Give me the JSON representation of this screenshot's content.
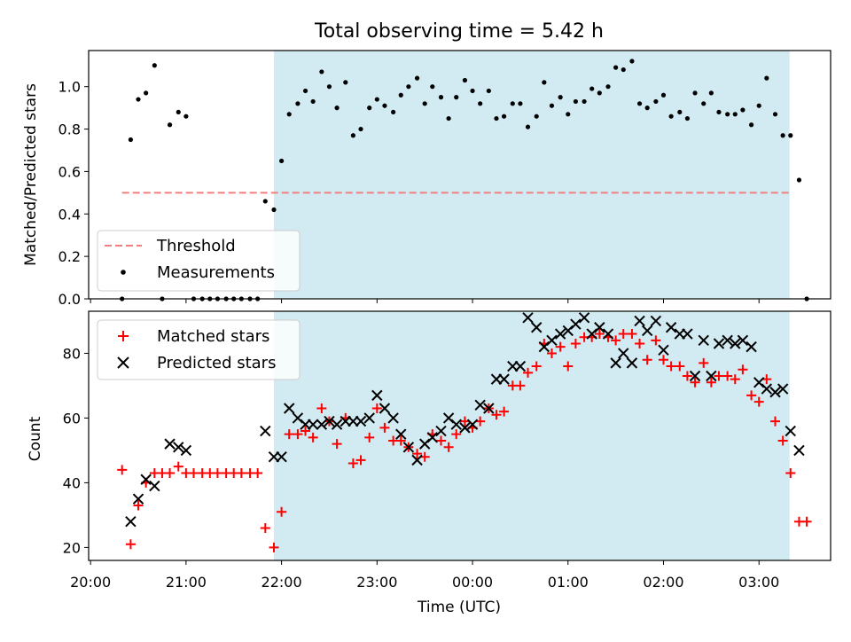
{
  "figure": {
    "title": "Total observing time = 5.42 h"
  },
  "chart_data": [
    {
      "type": "scatter",
      "panel": "top",
      "ylabel": "Matched/Predicted stars",
      "xlabel": "",
      "ylim": [
        0,
        1.17
      ],
      "yticks": [
        0.0,
        0.2,
        0.4,
        0.6,
        0.8,
        1.0
      ],
      "ytick_labels": [
        "0.0",
        "0.2",
        "0.4",
        "0.6",
        "0.8",
        "1.0"
      ],
      "xlim_hours": [
        19.98,
        27.75
      ],
      "highlight_span_hours": [
        21.92,
        27.32
      ],
      "highlight_color": "#add8e6",
      "threshold": {
        "name": "Threshold",
        "value": 0.5,
        "x_start_hours": 20.33,
        "x_end_hours": 27.32,
        "color": "#f08080"
      },
      "legend": {
        "placement": "lower-left",
        "entries": [
          "Threshold",
          "Measurements"
        ]
      },
      "series": [
        {
          "name": "Measurements",
          "marker": "dot",
          "color": "#000000",
          "points": [
            [
              20.33,
              0.0
            ],
            [
              20.42,
              0.75
            ],
            [
              20.5,
              0.94
            ],
            [
              20.58,
              0.97
            ],
            [
              20.67,
              1.1
            ],
            [
              20.75,
              0.0
            ],
            [
              20.83,
              0.82
            ],
            [
              20.92,
              0.88
            ],
            [
              21.0,
              0.86
            ],
            [
              21.08,
              0.0
            ],
            [
              21.17,
              0.0
            ],
            [
              21.25,
              0.0
            ],
            [
              21.33,
              0.0
            ],
            [
              21.42,
              0.0
            ],
            [
              21.5,
              0.0
            ],
            [
              21.58,
              0.0
            ],
            [
              21.67,
              0.0
            ],
            [
              21.75,
              0.0
            ],
            [
              21.83,
              0.46
            ],
            [
              21.92,
              0.42
            ],
            [
              22.0,
              0.65
            ],
            [
              22.08,
              0.87
            ],
            [
              22.17,
              0.92
            ],
            [
              22.25,
              0.98
            ],
            [
              22.33,
              0.93
            ],
            [
              22.42,
              1.07
            ],
            [
              22.5,
              1.0
            ],
            [
              22.58,
              0.9
            ],
            [
              22.67,
              1.02
            ],
            [
              22.75,
              0.77
            ],
            [
              22.83,
              0.8
            ],
            [
              22.92,
              0.9
            ],
            [
              23.0,
              0.94
            ],
            [
              23.08,
              0.91
            ],
            [
              23.17,
              0.88
            ],
            [
              23.25,
              0.96
            ],
            [
              23.33,
              1.0
            ],
            [
              23.42,
              1.04
            ],
            [
              23.5,
              0.92
            ],
            [
              23.58,
              1.0
            ],
            [
              23.67,
              0.95
            ],
            [
              23.75,
              0.85
            ],
            [
              23.83,
              0.95
            ],
            [
              23.92,
              1.03
            ],
            [
              24.0,
              0.98
            ],
            [
              24.08,
              0.92
            ],
            [
              24.17,
              0.98
            ],
            [
              24.25,
              0.85
            ],
            [
              24.33,
              0.86
            ],
            [
              24.42,
              0.92
            ],
            [
              24.5,
              0.92
            ],
            [
              24.58,
              0.81
            ],
            [
              24.67,
              0.86
            ],
            [
              24.75,
              1.02
            ],
            [
              24.83,
              0.91
            ],
            [
              24.92,
              0.95
            ],
            [
              25.0,
              0.87
            ],
            [
              25.08,
              0.93
            ],
            [
              25.17,
              0.93
            ],
            [
              25.25,
              0.99
            ],
            [
              25.33,
              0.97
            ],
            [
              25.42,
              1.0
            ],
            [
              25.5,
              1.09
            ],
            [
              25.58,
              1.08
            ],
            [
              25.67,
              1.12
            ],
            [
              25.75,
              0.92
            ],
            [
              25.83,
              0.9
            ],
            [
              25.92,
              0.93
            ],
            [
              26.0,
              0.96
            ],
            [
              26.08,
              0.86
            ],
            [
              26.17,
              0.88
            ],
            [
              26.25,
              0.85
            ],
            [
              26.33,
              0.97
            ],
            [
              26.42,
              0.92
            ],
            [
              26.5,
              0.97
            ],
            [
              26.58,
              0.88
            ],
            [
              26.67,
              0.87
            ],
            [
              26.75,
              0.87
            ],
            [
              26.83,
              0.89
            ],
            [
              26.92,
              0.82
            ],
            [
              27.0,
              0.91
            ],
            [
              27.08,
              1.04
            ],
            [
              27.17,
              0.87
            ],
            [
              27.25,
              0.77
            ],
            [
              27.33,
              0.77
            ],
            [
              27.42,
              0.56
            ],
            [
              27.5,
              0.0
            ]
          ]
        }
      ]
    },
    {
      "type": "scatter",
      "panel": "bottom",
      "ylabel": "Count",
      "xlabel": "Time (UTC)",
      "ylim": [
        16,
        93
      ],
      "yticks": [
        20,
        40,
        60,
        80
      ],
      "ytick_labels": [
        "20",
        "40",
        "60",
        "80"
      ],
      "xlim_hours": [
        19.98,
        27.75
      ],
      "xticks_hours": [
        20,
        21,
        22,
        23,
        24,
        25,
        26,
        27
      ],
      "xtick_labels": [
        "20:00",
        "21:00",
        "22:00",
        "23:00",
        "00:00",
        "01:00",
        "02:00",
        "03:00"
      ],
      "highlight_span_hours": [
        21.92,
        27.32
      ],
      "highlight_color": "#add8e6",
      "legend": {
        "placement": "upper-left",
        "entries": [
          "Matched stars",
          "Predicted stars"
        ]
      },
      "series": [
        {
          "name": "Matched stars",
          "marker": "plus",
          "color": "#ff0000",
          "points": [
            [
              20.33,
              44
            ],
            [
              20.42,
              21
            ],
            [
              20.5,
              33
            ],
            [
              20.58,
              40
            ],
            [
              20.67,
              43
            ],
            [
              20.75,
              43
            ],
            [
              20.83,
              43
            ],
            [
              20.92,
              45
            ],
            [
              21.0,
              43
            ],
            [
              21.08,
              43
            ],
            [
              21.17,
              43
            ],
            [
              21.25,
              43
            ],
            [
              21.33,
              43
            ],
            [
              21.42,
              43
            ],
            [
              21.5,
              43
            ],
            [
              21.58,
              43
            ],
            [
              21.67,
              43
            ],
            [
              21.75,
              43
            ],
            [
              21.83,
              26
            ],
            [
              21.92,
              20
            ],
            [
              22.0,
              31
            ],
            [
              22.08,
              55
            ],
            [
              22.17,
              55
            ],
            [
              22.25,
              56
            ],
            [
              22.33,
              54
            ],
            [
              22.42,
              63
            ],
            [
              22.5,
              59
            ],
            [
              22.58,
              52
            ],
            [
              22.67,
              60
            ],
            [
              22.75,
              46
            ],
            [
              22.83,
              47
            ],
            [
              22.92,
              54
            ],
            [
              23.0,
              63
            ],
            [
              23.08,
              57
            ],
            [
              23.17,
              53
            ],
            [
              23.25,
              53
            ],
            [
              23.33,
              51
            ],
            [
              23.42,
              49
            ],
            [
              23.5,
              48
            ],
            [
              23.58,
              55
            ],
            [
              23.67,
              53
            ],
            [
              23.75,
              51
            ],
            [
              23.83,
              55
            ],
            [
              23.92,
              59
            ],
            [
              24.0,
              57
            ],
            [
              24.08,
              59
            ],
            [
              24.17,
              63
            ],
            [
              24.25,
              61
            ],
            [
              24.33,
              62
            ],
            [
              24.42,
              70
            ],
            [
              24.5,
              70
            ],
            [
              24.58,
              74
            ],
            [
              24.67,
              76
            ],
            [
              24.75,
              83
            ],
            [
              24.83,
              80
            ],
            [
              24.92,
              82
            ],
            [
              25.0,
              76
            ],
            [
              25.08,
              83
            ],
            [
              25.17,
              85
            ],
            [
              25.25,
              85
            ],
            [
              25.33,
              86
            ],
            [
              25.42,
              85
            ],
            [
              25.5,
              84
            ],
            [
              25.58,
              86
            ],
            [
              25.67,
              86
            ],
            [
              25.75,
              83
            ],
            [
              25.83,
              78
            ],
            [
              25.92,
              84
            ],
            [
              26.0,
              78
            ],
            [
              26.08,
              76
            ],
            [
              26.17,
              76
            ],
            [
              26.25,
              73
            ],
            [
              26.33,
              71
            ],
            [
              26.42,
              77
            ],
            [
              26.5,
              71
            ],
            [
              26.58,
              73
            ],
            [
              26.67,
              73
            ],
            [
              26.75,
              72
            ],
            [
              26.83,
              75
            ],
            [
              26.92,
              67
            ],
            [
              27.0,
              65
            ],
            [
              27.08,
              72
            ],
            [
              27.17,
              59
            ],
            [
              27.25,
              53
            ],
            [
              27.33,
              43
            ],
            [
              27.42,
              28
            ],
            [
              27.5,
              28
            ]
          ]
        },
        {
          "name": "Predicted stars",
          "marker": "x",
          "color": "#000000",
          "points": [
            [
              20.42,
              28
            ],
            [
              20.5,
              35
            ],
            [
              20.58,
              41
            ],
            [
              20.67,
              39
            ],
            [
              20.83,
              52
            ],
            [
              20.92,
              51
            ],
            [
              21.0,
              50
            ],
            [
              21.83,
              56
            ],
            [
              21.92,
              48
            ],
            [
              22.0,
              48
            ],
            [
              22.08,
              63
            ],
            [
              22.17,
              60
            ],
            [
              22.25,
              58
            ],
            [
              22.33,
              58
            ],
            [
              22.42,
              58
            ],
            [
              22.5,
              59
            ],
            [
              22.58,
              58
            ],
            [
              22.67,
              59
            ],
            [
              22.75,
              59
            ],
            [
              22.83,
              59
            ],
            [
              22.92,
              60
            ],
            [
              23.0,
              67
            ],
            [
              23.08,
              63
            ],
            [
              23.17,
              60
            ],
            [
              23.25,
              55
            ],
            [
              23.33,
              51
            ],
            [
              23.42,
              47
            ],
            [
              23.5,
              52
            ],
            [
              23.58,
              54
            ],
            [
              23.67,
              56
            ],
            [
              23.75,
              60
            ],
            [
              23.83,
              58
            ],
            [
              23.92,
              57
            ],
            [
              24.0,
              58
            ],
            [
              24.08,
              64
            ],
            [
              24.17,
              63
            ],
            [
              24.25,
              72
            ],
            [
              24.33,
              72
            ],
            [
              24.42,
              76
            ],
            [
              24.5,
              76
            ],
            [
              24.58,
              91
            ],
            [
              24.67,
              88
            ],
            [
              24.75,
              82
            ],
            [
              24.83,
              84
            ],
            [
              24.92,
              86
            ],
            [
              25.0,
              87
            ],
            [
              25.08,
              89
            ],
            [
              25.17,
              91
            ],
            [
              25.25,
              86
            ],
            [
              25.33,
              88
            ],
            [
              25.42,
              86
            ],
            [
              25.5,
              77
            ],
            [
              25.58,
              80
            ],
            [
              25.67,
              77
            ],
            [
              25.75,
              90
            ],
            [
              25.83,
              87
            ],
            [
              25.92,
              90
            ],
            [
              26.0,
              81
            ],
            [
              26.08,
              88
            ],
            [
              26.17,
              86
            ],
            [
              26.25,
              86
            ],
            [
              26.33,
              73
            ],
            [
              26.42,
              84
            ],
            [
              26.5,
              73
            ],
            [
              26.58,
              83
            ],
            [
              26.67,
              84
            ],
            [
              26.75,
              83
            ],
            [
              26.83,
              84
            ],
            [
              26.92,
              82
            ],
            [
              27.0,
              71
            ],
            [
              27.08,
              69
            ],
            [
              27.17,
              68
            ],
            [
              27.25,
              69
            ],
            [
              27.33,
              56
            ],
            [
              27.42,
              50
            ]
          ]
        }
      ]
    }
  ]
}
